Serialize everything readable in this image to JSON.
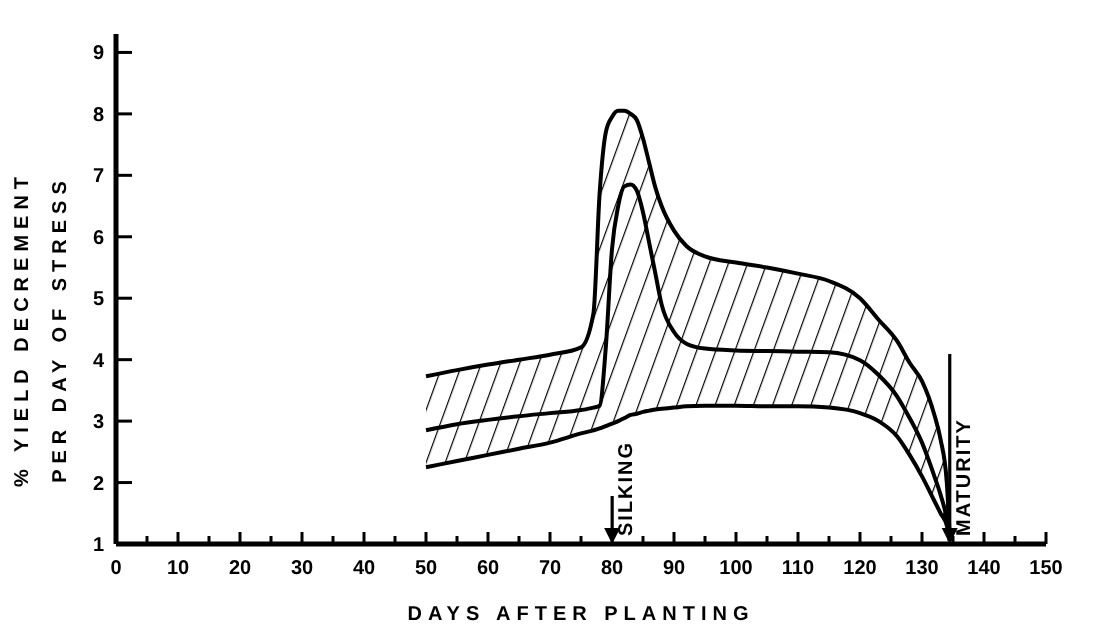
{
  "chart_data": {
    "type": "line",
    "xlabel": "DAYS AFTER PLANTING",
    "ylabel": "% YIELD DECREMENT\nPER DAY OF STRESS",
    "xlim": [
      0,
      150
    ],
    "ylim": [
      1,
      9.3
    ],
    "xticks": [
      0,
      {
        "value": 5,
        "label": null
      },
      10,
      {
        "value": 15,
        "label": null
      },
      20,
      {
        "value": 25,
        "label": null
      },
      30,
      {
        "value": 35,
        "label": null
      },
      40,
      {
        "value": 45,
        "label": null
      },
      50,
      {
        "value": 55,
        "label": null
      },
      60,
      {
        "value": 65,
        "label": null
      },
      70,
      {
        "value": 75,
        "label": null
      },
      80,
      {
        "value": 85,
        "label": null
      },
      90,
      {
        "value": 95,
        "label": null
      },
      100,
      {
        "value": 105,
        "label": null
      },
      110,
      {
        "value": 115,
        "label": null
      },
      120,
      {
        "value": 125,
        "label": null
      },
      130,
      {
        "value": 135,
        "label": null
      },
      140,
      {
        "value": 145,
        "label": null
      },
      150
    ],
    "yticks": [
      1,
      2,
      3,
      4,
      5,
      6,
      7,
      8,
      9
    ],
    "grid": false,
    "marker": "none",
    "line_style": "solid",
    "x": [
      50,
      55,
      60,
      65,
      70,
      75,
      77,
      78,
      79,
      80,
      81,
      82,
      83,
      84,
      85,
      86,
      87,
      88,
      90,
      92,
      95,
      100,
      105,
      110,
      115,
      120,
      123,
      126,
      128,
      130,
      132,
      133,
      134,
      134.5
    ],
    "series": [
      {
        "color": "#000000",
        "values": [
          2.85,
          2.95,
          3.02,
          3.08,
          3.13,
          3.18,
          3.22,
          3.25,
          4.2,
          5.8,
          6.5,
          6.82,
          6.85,
          6.75,
          6.4,
          5.9,
          5.4,
          4.9,
          4.45,
          4.26,
          4.18,
          4.15,
          4.14,
          4.13,
          4.12,
          3.99,
          3.75,
          3.4,
          3.05,
          2.65,
          2.1,
          1.8,
          1.4,
          1.05
        ],
        "upper": [
          3.73,
          3.83,
          3.92,
          4.0,
          4.08,
          4.2,
          4.75,
          6.7,
          7.7,
          7.95,
          8.05,
          8.05,
          8.0,
          7.9,
          7.6,
          7.2,
          6.8,
          6.5,
          6.1,
          5.85,
          5.68,
          5.58,
          5.5,
          5.4,
          5.28,
          5.0,
          4.65,
          4.3,
          3.95,
          3.65,
          3.1,
          2.7,
          2.0,
          1.05
        ],
        "lower": [
          2.25,
          2.35,
          2.45,
          2.55,
          2.65,
          2.8,
          2.85,
          2.88,
          2.92,
          2.96,
          3.0,
          3.05,
          3.1,
          3.12,
          3.15,
          3.17,
          3.19,
          3.2,
          3.22,
          3.24,
          3.25,
          3.25,
          3.24,
          3.24,
          3.22,
          3.13,
          3.0,
          2.75,
          2.45,
          2.1,
          1.7,
          1.5,
          1.3,
          1.05
        ]
      },
      {
        "color": "#000000",
        "values": [
          3.73,
          3.83,
          3.92,
          4.0,
          4.08,
          4.2,
          4.75,
          6.7,
          7.7,
          7.95,
          8.05,
          8.05,
          8.0,
          7.9,
          7.6,
          7.2,
          6.8,
          6.5,
          6.1,
          5.85,
          5.68,
          5.58,
          5.5,
          5.4,
          5.28,
          5.0,
          4.65,
          4.3,
          3.95,
          3.65,
          3.1,
          2.7,
          2.0,
          1.05
        ]
      },
      {
        "color": "#000000",
        "values": [
          2.25,
          2.35,
          2.45,
          2.55,
          2.65,
          2.8,
          2.85,
          2.88,
          2.92,
          2.96,
          3.0,
          3.05,
          3.1,
          3.12,
          3.15,
          3.17,
          3.19,
          3.2,
          3.22,
          3.24,
          3.25,
          3.25,
          3.24,
          3.24,
          3.22,
          3.13,
          3.0,
          2.75,
          2.45,
          2.1,
          1.7,
          1.5,
          1.3,
          1.05
        ]
      }
    ],
    "annotations": [
      "SILKING",
      "MATURITY"
    ]
  }
}
